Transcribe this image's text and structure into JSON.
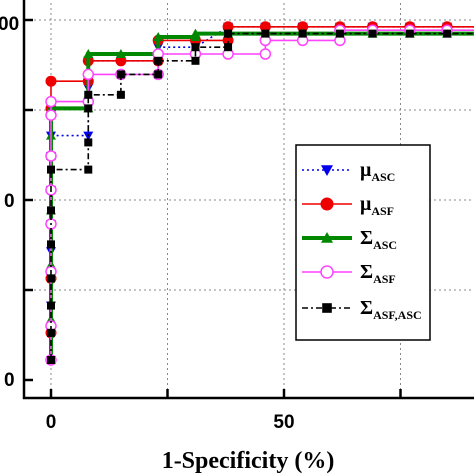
{
  "chart_data": {
    "type": "line",
    "xlabel": "1-Specificity (%)",
    "ylabel": "",
    "x_ticks": [
      0,
      50
    ],
    "y_tick_labels": [
      "00",
      "0",
      "0"
    ],
    "xlim": [
      -3,
      94
    ],
    "ylim": [
      0,
      100
    ],
    "grid": true,
    "legend_position": "right",
    "series": [
      {
        "name": "μ",
        "sub": "ASC",
        "color": "#0000ee",
        "dash": "2,3",
        "marker": "triangle-down",
        "points": [
          [
            0,
            0
          ],
          [
            0,
            8
          ],
          [
            0,
            16
          ],
          [
            0,
            24
          ],
          [
            0,
            32
          ],
          [
            0,
            40
          ],
          [
            0,
            50
          ],
          [
            0,
            60
          ],
          [
            0,
            66
          ],
          [
            8,
            66
          ],
          [
            8,
            80
          ],
          [
            8,
            88
          ],
          [
            15,
            88
          ],
          [
            23,
            88
          ],
          [
            23,
            92
          ],
          [
            31,
            92
          ],
          [
            38,
            98
          ],
          [
            46,
            98
          ],
          [
            54,
            98
          ],
          [
            62,
            98
          ],
          [
            69,
            98
          ],
          [
            77,
            98
          ],
          [
            85,
            98
          ],
          [
            92,
            98
          ]
        ]
      },
      {
        "name": "μ",
        "sub": "ASF",
        "color": "#ee0000",
        "dash": "",
        "marker": "circle",
        "points": [
          [
            0,
            8
          ],
          [
            0,
            24
          ],
          [
            0,
            40
          ],
          [
            0,
            60
          ],
          [
            0,
            74
          ],
          [
            0,
            82
          ],
          [
            8,
            82
          ],
          [
            8,
            88
          ],
          [
            15,
            88
          ],
          [
            23,
            88
          ],
          [
            23,
            94
          ],
          [
            31,
            94
          ],
          [
            38,
            94
          ],
          [
            38,
            98
          ],
          [
            46,
            98
          ],
          [
            54,
            98
          ],
          [
            62,
            98
          ],
          [
            69,
            98
          ],
          [
            77,
            98
          ],
          [
            85,
            98
          ],
          [
            92,
            98
          ]
        ]
      },
      {
        "name": "Σ",
        "sub": "ASC",
        "color": "#008800",
        "dash": "",
        "marker": "triangle-up",
        "points": [
          [
            0,
            0
          ],
          [
            0,
            12
          ],
          [
            0,
            28
          ],
          [
            0,
            44
          ],
          [
            0,
            60
          ],
          [
            0,
            66
          ],
          [
            0,
            74
          ],
          [
            8,
            74
          ],
          [
            8,
            78
          ],
          [
            8,
            90
          ],
          [
            15,
            90
          ],
          [
            23,
            90
          ],
          [
            23,
            95
          ],
          [
            31,
            95
          ],
          [
            31,
            96
          ],
          [
            38,
            96
          ],
          [
            46,
            96
          ],
          [
            54,
            96
          ],
          [
            62,
            96
          ],
          [
            69,
            96
          ],
          [
            77,
            96
          ],
          [
            85,
            96
          ],
          [
            92,
            96
          ]
        ]
      },
      {
        "name": "Σ",
        "sub": "ASF",
        "color": "#ff44ff",
        "dash": "",
        "marker": "circle-open",
        "points": [
          [
            0,
            0
          ],
          [
            0,
            10
          ],
          [
            0,
            26
          ],
          [
            0,
            40
          ],
          [
            0,
            50
          ],
          [
            0,
            60
          ],
          [
            0,
            72
          ],
          [
            0,
            76
          ],
          [
            8,
            76
          ],
          [
            8,
            84
          ],
          [
            15,
            84
          ],
          [
            23,
            84
          ],
          [
            23,
            90
          ],
          [
            31,
            90
          ],
          [
            38,
            90
          ],
          [
            46,
            90
          ],
          [
            46,
            94
          ],
          [
            54,
            94
          ],
          [
            62,
            94
          ],
          [
            62,
            97
          ],
          [
            69,
            97
          ],
          [
            77,
            97
          ],
          [
            85,
            97
          ],
          [
            92,
            97
          ]
        ]
      },
      {
        "name": "Σ",
        "sub": "ASF,ASC",
        "color": "#000000",
        "dash": "6,3,2,3",
        "marker": "square",
        "points": [
          [
            0,
            0
          ],
          [
            0,
            8
          ],
          [
            0,
            16
          ],
          [
            0,
            24
          ],
          [
            0,
            34
          ],
          [
            0,
            44
          ],
          [
            0,
            56
          ],
          [
            8,
            56
          ],
          [
            8,
            64
          ],
          [
            8,
            74
          ],
          [
            8,
            78
          ],
          [
            15,
            78
          ],
          [
            15,
            84
          ],
          [
            23,
            84
          ],
          [
            23,
            88
          ],
          [
            31,
            88
          ],
          [
            31,
            92
          ],
          [
            38,
            92
          ],
          [
            38,
            96
          ],
          [
            46,
            96
          ],
          [
            54,
            96
          ],
          [
            62,
            96
          ],
          [
            69,
            96
          ],
          [
            77,
            96
          ],
          [
            85,
            96
          ],
          [
            92,
            96
          ]
        ]
      }
    ]
  }
}
